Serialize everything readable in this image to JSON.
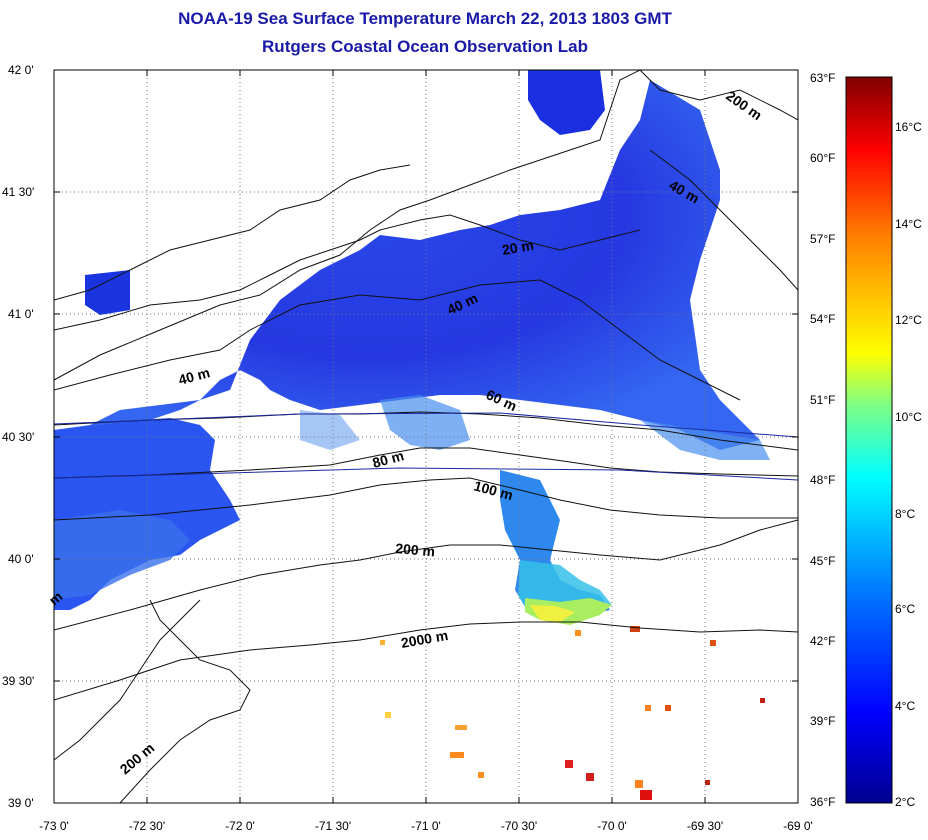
{
  "title": "NOAA-19 Sea Surface Temperature March 22, 2013 1803 GMT",
  "subtitle": "Rutgers Coastal Ocean Observation Lab",
  "axes": {
    "lat_ticks": [
      "42 0'",
      "41 30'",
      "41 0'",
      "40 30'",
      "40 0'",
      "39 30'",
      "39 0'"
    ],
    "lon_ticks": [
      "-73 0'",
      "-72 30'",
      "-72 0'",
      "-71 30'",
      "-71 0'",
      "-70 30'",
      "-70 0'",
      "-69 30'",
      "-69 0'"
    ],
    "lat_range": [
      39.0,
      42.0
    ],
    "lon_range": [
      -73.0,
      -69.0
    ]
  },
  "contours": {
    "labels": [
      "200 m",
      "40 m",
      "20 m",
      "40 m",
      "40 m",
      "60 m",
      "80 m",
      "100 m",
      "200 m",
      "2000 m",
      "200 m",
      "m"
    ]
  },
  "colorbar": {
    "fahrenheit": [
      "63°F",
      "60°F",
      "57°F",
      "54°F",
      "51°F",
      "48°F",
      "45°F",
      "42°F",
      "39°F",
      "36°F"
    ],
    "celsius": [
      "16°C",
      "14°C",
      "12°C",
      "10°C",
      "8°C",
      "6°C",
      "4°C",
      "2°C"
    ],
    "colors": [
      "#00008f",
      "#0000ff",
      "#0080ff",
      "#00ffff",
      "#80ff80",
      "#ffff00",
      "#ff8000",
      "#ff0000",
      "#800000"
    ]
  }
}
